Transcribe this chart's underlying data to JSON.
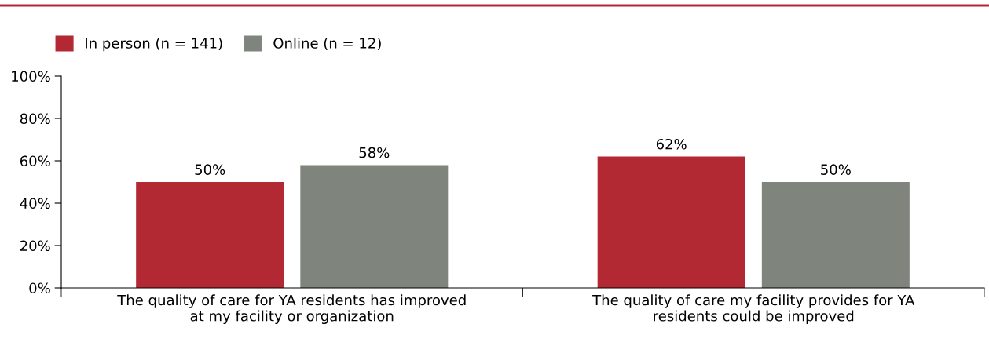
{
  "chart_data": {
    "type": "bar",
    "categories": [
      "The quality of care for YA residents has improved\nat my facility or organization",
      "The quality of care my facility provides for YA\nresidents could be improved"
    ],
    "series": [
      {
        "name": "In person (n = 141)",
        "color": "#b22833",
        "values": [
          50,
          62
        ],
        "value_labels": [
          "50%",
          "62%"
        ]
      },
      {
        "name": "Online (n = 12)",
        "color": "#7f857d",
        "values": [
          58,
          50
        ],
        "value_labels": [
          "58%",
          "50%"
        ]
      }
    ],
    "ylim": [
      0,
      100
    ],
    "yticks": [
      {
        "value": 0,
        "label": "0%"
      },
      {
        "value": 20,
        "label": "20%"
      },
      {
        "value": 40,
        "label": "40%"
      },
      {
        "value": 60,
        "label": "60%"
      },
      {
        "value": 80,
        "label": "80%"
      },
      {
        "value": 100,
        "label": "100%"
      }
    ],
    "grid": false,
    "legend": "top left"
  }
}
